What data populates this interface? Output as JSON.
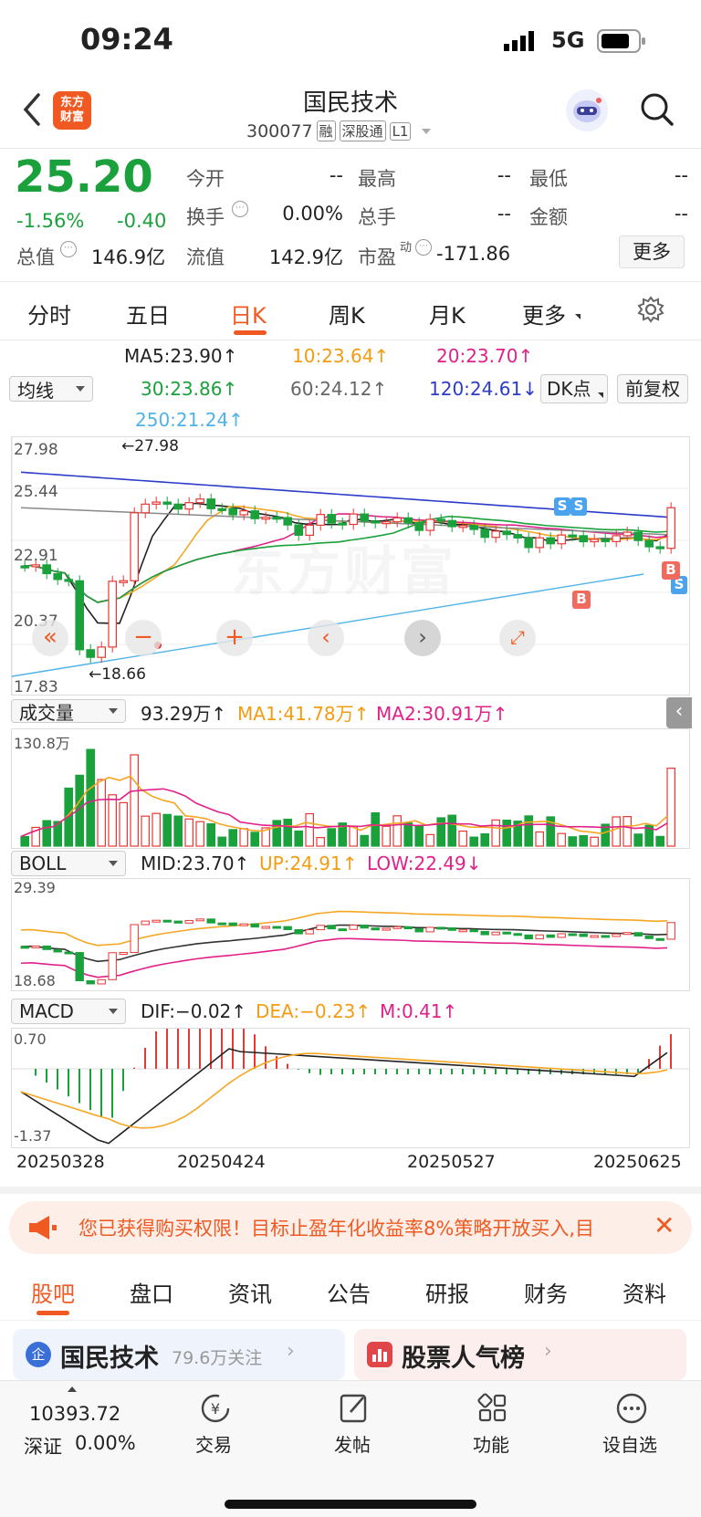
{
  "status_bar": {
    "time": "09:24",
    "network": "5G"
  },
  "header": {
    "logo_text": "东方\n财富",
    "stock_name": "国民技术",
    "stock_code": "300077",
    "tags": [
      "融",
      "深股通",
      "L1"
    ]
  },
  "quote": {
    "price": "25.20",
    "change_pct": "-1.56%",
    "change": "-0.40",
    "fields": [
      {
        "label": "今开",
        "value": "--"
      },
      {
        "label": "最高",
        "value": "--"
      },
      {
        "label": "最低",
        "value": "--"
      },
      {
        "label": "换手",
        "value": "0.00%"
      },
      {
        "label": "总手",
        "value": "--"
      },
      {
        "label": "金额",
        "value": "--"
      },
      {
        "label": "总值",
        "value": "146.9亿"
      },
      {
        "label": "流值",
        "value": "142.9亿"
      },
      {
        "label": "市盈",
        "sup": "动",
        "value": "-171.86"
      }
    ],
    "more_label": "更多"
  },
  "period_tabs": [
    "分时",
    "五日",
    "日K",
    "周K",
    "月K",
    "更多"
  ],
  "active_period": "日K",
  "ma_legend": {
    "selector": "均线",
    "ma5": "MA5:23.90↑",
    "ma10": "10:23.64↑",
    "ma20": "20:23.70↑",
    "ma30": "30:23.86↑",
    "ma60": "60:24.12↑",
    "ma120": "120:24.61↓",
    "ma250": "250:21.24↑",
    "dk_button": "DK点",
    "adjust_button": "前复权"
  },
  "kline": {
    "y_labels": [
      "27.98",
      "25.44",
      "22.91",
      "20.37",
      "17.83"
    ],
    "high_marker": "←27.98",
    "low_marker": "←18.66",
    "watermark": "东方财富",
    "signal_s": "S",
    "signal_b": "B"
  },
  "volume": {
    "selector": "成交量",
    "value": "93.29万↑",
    "ma1": "MA1:41.78万↑",
    "ma2": "MA2:30.91万↑",
    "y_max": "130.8万"
  },
  "boll": {
    "selector": "BOLL",
    "mid": "MID:23.70↑",
    "up": "UP:24.91↑",
    "low": "LOW:22.49↓",
    "y_max": "29.39",
    "y_min": "18.68"
  },
  "macd": {
    "selector": "MACD",
    "dif": "DIF:−0.02↑",
    "dea": "DEA:−0.23↑",
    "m": "M:0.41↑",
    "y_max": "0.70",
    "y_min": "-1.37"
  },
  "x_dates": [
    "20250328",
    "20250424",
    "20250527",
    "20250625"
  ],
  "banner": {
    "text": "您已获得购买权限！目标止盈年化收益率8%策略开放买入,目"
  },
  "bottom_tabs": [
    "股吧",
    "盘口",
    "资讯",
    "公告",
    "研报",
    "财务",
    "资料"
  ],
  "active_bottom_tab": "股吧",
  "cards": {
    "left_title": "国民技术",
    "left_sub": "79.6万关注",
    "right_title": "股票人气榜"
  },
  "index": {
    "value": "10393.72",
    "name": "深证",
    "change": "0.00%"
  },
  "toolbar": [
    "交易",
    "发帖",
    "功能",
    "设自选"
  ],
  "colors": {
    "up": "#e53935",
    "down": "#1aa13c",
    "accent": "#f05a22"
  }
}
